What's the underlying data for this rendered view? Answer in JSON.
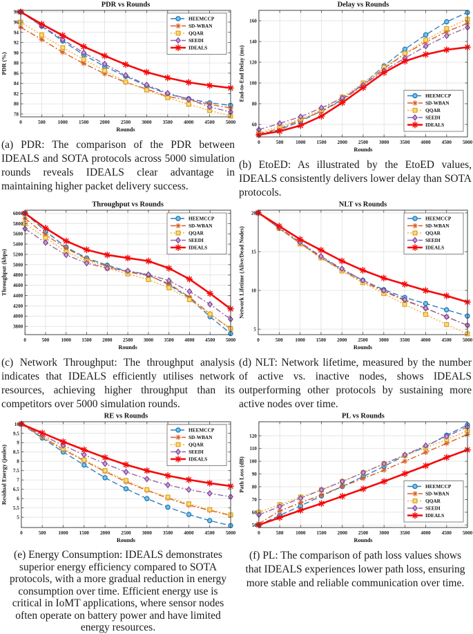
{
  "page": {
    "background": "#ffffff"
  },
  "series_styles": [
    {
      "name": "HEEMCCP",
      "color": "#2E7DBE",
      "marker": "circle",
      "marker_fill": "#6EC6EE",
      "marker_edge": "#1A6FAF",
      "dash": "8 4",
      "line_width": 1.4
    },
    {
      "name": "SD-WBAN",
      "color": "#D85C20",
      "marker": "asterisk",
      "marker_fill": "#D85C20",
      "marker_edge": "#D85C20",
      "dash": "8 3 2 3",
      "line_width": 1.4
    },
    {
      "name": "QQAR",
      "color": "#EFAF2F",
      "marker": "square",
      "marker_fill": "#FAD97F",
      "marker_edge": "#DCA01D",
      "dash": "2 2.5",
      "line_width": 1.4
    },
    {
      "name": "SEEDI",
      "color": "#9562A8",
      "marker": "diamond",
      "marker_fill": "#C79FD6",
      "marker_edge": "#7A3E96",
      "dash": "8 3 2 3",
      "line_width": 1.4
    },
    {
      "name": "IDEALS",
      "color": "#F40A0A",
      "marker": "asterisk",
      "marker_fill": "#F40A0A",
      "marker_edge": "#F40A0A",
      "dash": "",
      "line_width": 2.6
    }
  ],
  "chart_data": [
    {
      "type": "line",
      "panel": "a",
      "title": "PDR vs Rounds",
      "xlabel": "Rounds",
      "ylabel": "PDR (%)",
      "x": [
        0,
        500,
        1000,
        1500,
        2000,
        2500,
        3000,
        3500,
        4000,
        4500,
        5000
      ],
      "ylim": [
        77.45,
        98.3
      ],
      "yticks": [
        78,
        80,
        82,
        84,
        86,
        88,
        90,
        92,
        94,
        96,
        98
      ],
      "grid": true,
      "legend_pos": "top-right",
      "series": [
        {
          "name": "HEEMCCP",
          "values": [
            98,
            95.2,
            92.3,
            89.6,
            87.3,
            85.4,
            83.5,
            81.9,
            81.0,
            80.2,
            79.7
          ]
        },
        {
          "name": "SD-WBAN",
          "values": [
            95,
            92.6,
            90.1,
            87.9,
            85.9,
            84.2,
            82.9,
            81.4,
            80.8,
            79.9,
            79.2
          ]
        },
        {
          "name": "QQAR",
          "values": [
            96,
            93.5,
            91.0,
            88.7,
            86.5,
            84.3,
            82.7,
            81.2,
            79.9,
            78.7,
            77.6
          ]
        },
        {
          "name": "SEEDI",
          "values": [
            98,
            95.3,
            92.6,
            90.0,
            87.8,
            85.6,
            83.7,
            82.1,
            80.9,
            79.4,
            78.4
          ]
        },
        {
          "name": "IDEALS",
          "values": [
            98,
            95.6,
            93.4,
            91.2,
            89.4,
            87.7,
            86.2,
            85.1,
            84.2,
            83.6,
            83.1
          ]
        }
      ]
    },
    {
      "type": "line",
      "panel": "b",
      "title": "Delay vs Rounds",
      "xlabel": "Rounds",
      "ylabel": "End-to-End Delay (ms)",
      "x": [
        0,
        500,
        1000,
        1500,
        2000,
        2500,
        3000,
        3500,
        4000,
        4500,
        5000
      ],
      "ylim": [
        48,
        170
      ],
      "yticks": [
        60,
        80,
        100,
        120,
        140,
        160
      ],
      "grid": true,
      "legend_pos": "bottom-right",
      "series": [
        {
          "name": "HEEMCCP",
          "values": [
            50,
            55,
            63,
            73,
            84,
            99,
            116.5,
            132.5,
            146.5,
            159,
            168
          ]
        },
        {
          "name": "SD-WBAN",
          "values": [
            51,
            56,
            64.5,
            72.5,
            83.5,
            98,
            114,
            128,
            139.5,
            149.5,
            157.5
          ]
        },
        {
          "name": "QQAR",
          "values": [
            52,
            58,
            65.5,
            74,
            86.5,
            100,
            115,
            128.5,
            141.5,
            152.5,
            161.5
          ]
        },
        {
          "name": "SEEDI",
          "values": [
            55,
            61,
            67.5,
            76,
            85.5,
            98,
            112,
            124,
            135.5,
            145.5,
            153.5
          ]
        },
        {
          "name": "IDEALS",
          "values": [
            50,
            53.5,
            59,
            68,
            81,
            95.5,
            110,
            121,
            127.5,
            132,
            134.5
          ]
        }
      ]
    },
    {
      "type": "line",
      "panel": "c",
      "title": "Throughput vs Rounds",
      "xlabel": "Rounds",
      "ylabel": "Throughput (kbps)",
      "x": [
        0,
        500,
        1000,
        1500,
        2000,
        2500,
        3000,
        3500,
        4000,
        4500,
        5000
      ],
      "ylim": [
        3640,
        6060
      ],
      "yticks": [
        3800,
        4000,
        4200,
        4400,
        4600,
        4800,
        5000,
        5200,
        5400,
        5600,
        5800,
        6000
      ],
      "grid": true,
      "legend_pos": "top-right",
      "series": [
        {
          "name": "HEEMCCP",
          "values": [
            6000,
            5650,
            5340,
            5130,
            4990,
            4870,
            4800,
            4610,
            4350,
            3990,
            3660
          ]
        },
        {
          "name": "SD-WBAN",
          "values": [
            5900,
            5580,
            5320,
            5110,
            4965,
            4860,
            4790,
            4630,
            4370,
            4040,
            3750
          ]
        },
        {
          "name": "QQAR",
          "values": [
            5800,
            5520,
            5250,
            5070,
            4930,
            4820,
            4710,
            4550,
            4320,
            4040,
            3760
          ]
        },
        {
          "name": "SEEDI",
          "values": [
            5700,
            5430,
            5190,
            5030,
            4930,
            4880,
            4810,
            4690,
            4480,
            4230,
            3940
          ]
        },
        {
          "name": "IDEALS",
          "values": [
            6000,
            5710,
            5460,
            5290,
            5190,
            5130,
            5070,
            4930,
            4720,
            4440,
            4140
          ]
        }
      ]
    },
    {
      "type": "line",
      "panel": "d",
      "title": "NLT vs Rounds",
      "xlabel": "Rounds",
      "ylabel": "Network Lifetime (Alive/Dead Nodes)",
      "x": [
        0,
        500,
        1000,
        1500,
        2000,
        2500,
        3000,
        3500,
        4000,
        4500,
        5000
      ],
      "ylim": [
        4.3,
        20.35
      ],
      "yticks": [
        5,
        10,
        15,
        20
      ],
      "grid": true,
      "legend_pos": "top-right",
      "series": [
        {
          "name": "HEEMCCP",
          "values": [
            20,
            18,
            16.1,
            14.3,
            12.7,
            11.3,
            10.1,
            9.1,
            8.3,
            7.5,
            6.7
          ]
        },
        {
          "name": "SD-WBAN",
          "values": [
            20,
            18,
            16.1,
            14.2,
            12.6,
            11.1,
            9.9,
            8.7,
            7.7,
            6.6,
            5.5
          ]
        },
        {
          "name": "QQAR",
          "values": [
            20,
            18,
            16.0,
            14.2,
            12.5,
            11.0,
            9.6,
            8.2,
            6.9,
            5.6,
            4.4
          ]
        },
        {
          "name": "SEEDI",
          "values": [
            20,
            18.1,
            16.2,
            14.4,
            12.8,
            11.3,
            10.0,
            8.8,
            7.7,
            6.6,
            5.5
          ]
        },
        {
          "name": "IDEALS",
          "values": [
            20,
            18.3,
            16.6,
            15.2,
            13.8,
            12.6,
            11.6,
            10.8,
            10.0,
            9.3,
            8.5
          ]
        }
      ]
    },
    {
      "type": "line",
      "panel": "e",
      "title": "RE vs Rounds",
      "xlabel": "Rounds",
      "ylabel": "Residual Energy (joules)",
      "x": [
        0,
        500,
        1000,
        1500,
        2000,
        2500,
        3000,
        3500,
        4000,
        4500,
        5000
      ],
      "ylim": [
        4.45,
        10.12
      ],
      "yticks": [
        5,
        5.5,
        6,
        6.5,
        7,
        7.5,
        8,
        8.5,
        9,
        9.5,
        10
      ],
      "grid": true,
      "legend_pos": "top-right",
      "series": [
        {
          "name": "HEEMCCP",
          "values": [
            10,
            9.25,
            8.5,
            7.8,
            7.12,
            6.53,
            6.0,
            5.54,
            5.15,
            4.82,
            4.55
          ]
        },
        {
          "name": "SD-WBAN",
          "values": [
            10,
            9.3,
            8.63,
            8.03,
            7.45,
            6.9,
            6.44,
            6.02,
            5.65,
            5.37,
            5.1
          ]
        },
        {
          "name": "QQAR",
          "values": [
            10,
            9.35,
            8.68,
            8.07,
            7.5,
            6.97,
            6.48,
            6.08,
            5.72,
            5.41,
            5.13
          ]
        },
        {
          "name": "SEEDI",
          "values": [
            10,
            9.4,
            8.85,
            8.35,
            7.87,
            7.43,
            7.05,
            6.73,
            6.48,
            6.28,
            6.1
          ]
        },
        {
          "name": "IDEALS",
          "values": [
            10,
            9.52,
            9.05,
            8.62,
            8.2,
            7.82,
            7.5,
            7.23,
            7.01,
            6.83,
            6.67
          ]
        }
      ]
    },
    {
      "type": "line",
      "panel": "f",
      "title": "PL vs Rounds",
      "xlabel": "Rounds",
      "ylabel": "Path Loss (dB)",
      "x": [
        0,
        500,
        1000,
        1500,
        2000,
        2500,
        3000,
        3500,
        4000,
        4500,
        5000
      ],
      "ylim": [
        48,
        131
      ],
      "yticks": [
        50,
        60,
        70,
        80,
        90,
        100,
        110,
        120
      ],
      "grid": true,
      "legend_pos": "bottom-right",
      "series": [
        {
          "name": "HEEMCCP",
          "values": [
            50,
            57.5,
            65,
            72.8,
            80.2,
            88,
            96,
            104.5,
            111.5,
            120.5,
            128.5
          ]
        },
        {
          "name": "SD-WBAN",
          "values": [
            51,
            61,
            67.5,
            73.5,
            80.3,
            86.5,
            93,
            100,
            107,
            114,
            121
          ]
        },
        {
          "name": "QQAR",
          "values": [
            60,
            66,
            72,
            77.5,
            84,
            91,
            98,
            104.5,
            110.5,
            117,
            124
          ]
        },
        {
          "name": "SEEDI",
          "values": [
            58,
            64.5,
            71,
            77.5,
            84.2,
            91,
            98,
            105,
            112.3,
            119.5,
            127
          ]
        },
        {
          "name": "IDEALS",
          "values": [
            50,
            55.8,
            61.5,
            66.8,
            72.5,
            78.3,
            84.2,
            90.3,
            96.5,
            103,
            109
          ]
        }
      ]
    }
  ],
  "captions": {
    "a": "(a) PDR: The comparison of the PDR between IDEALS and SOTA protocols across 5000 simulation rounds reveals IDEALS clear advantage in maintaining higher packet delivery success.",
    "b": "(b) EtoED: As illustrated by the EtoED values, IDEALS consistently delivers lower delay than SOTA protocols.",
    "c": "(c) Network Throughput: The throughput analysis indicates that IDEALS efficiently utilises network resources, achieving higher throughput than its competitors over 5000 simulation rounds.",
    "d": "(d) NLT: Network lifetime, measured by the number of active vs. inactive nodes, shows IDEALS outperforming other protocols by sustaining more active nodes over time.",
    "e": "(e) Energy Consumption: IDEALS demonstrates superior energy efficiency compared to SOTA protocols, with a more gradual reduction in energy consumption over time. Efficient energy use is critical in IoMT applications, where sensor nodes often operate on battery power and have limited energy resources.",
    "f": "(f) PL: The comparison of path loss values shows that IDEALS experiences lower path loss, ensuring more stable and reliable communication over time."
  }
}
